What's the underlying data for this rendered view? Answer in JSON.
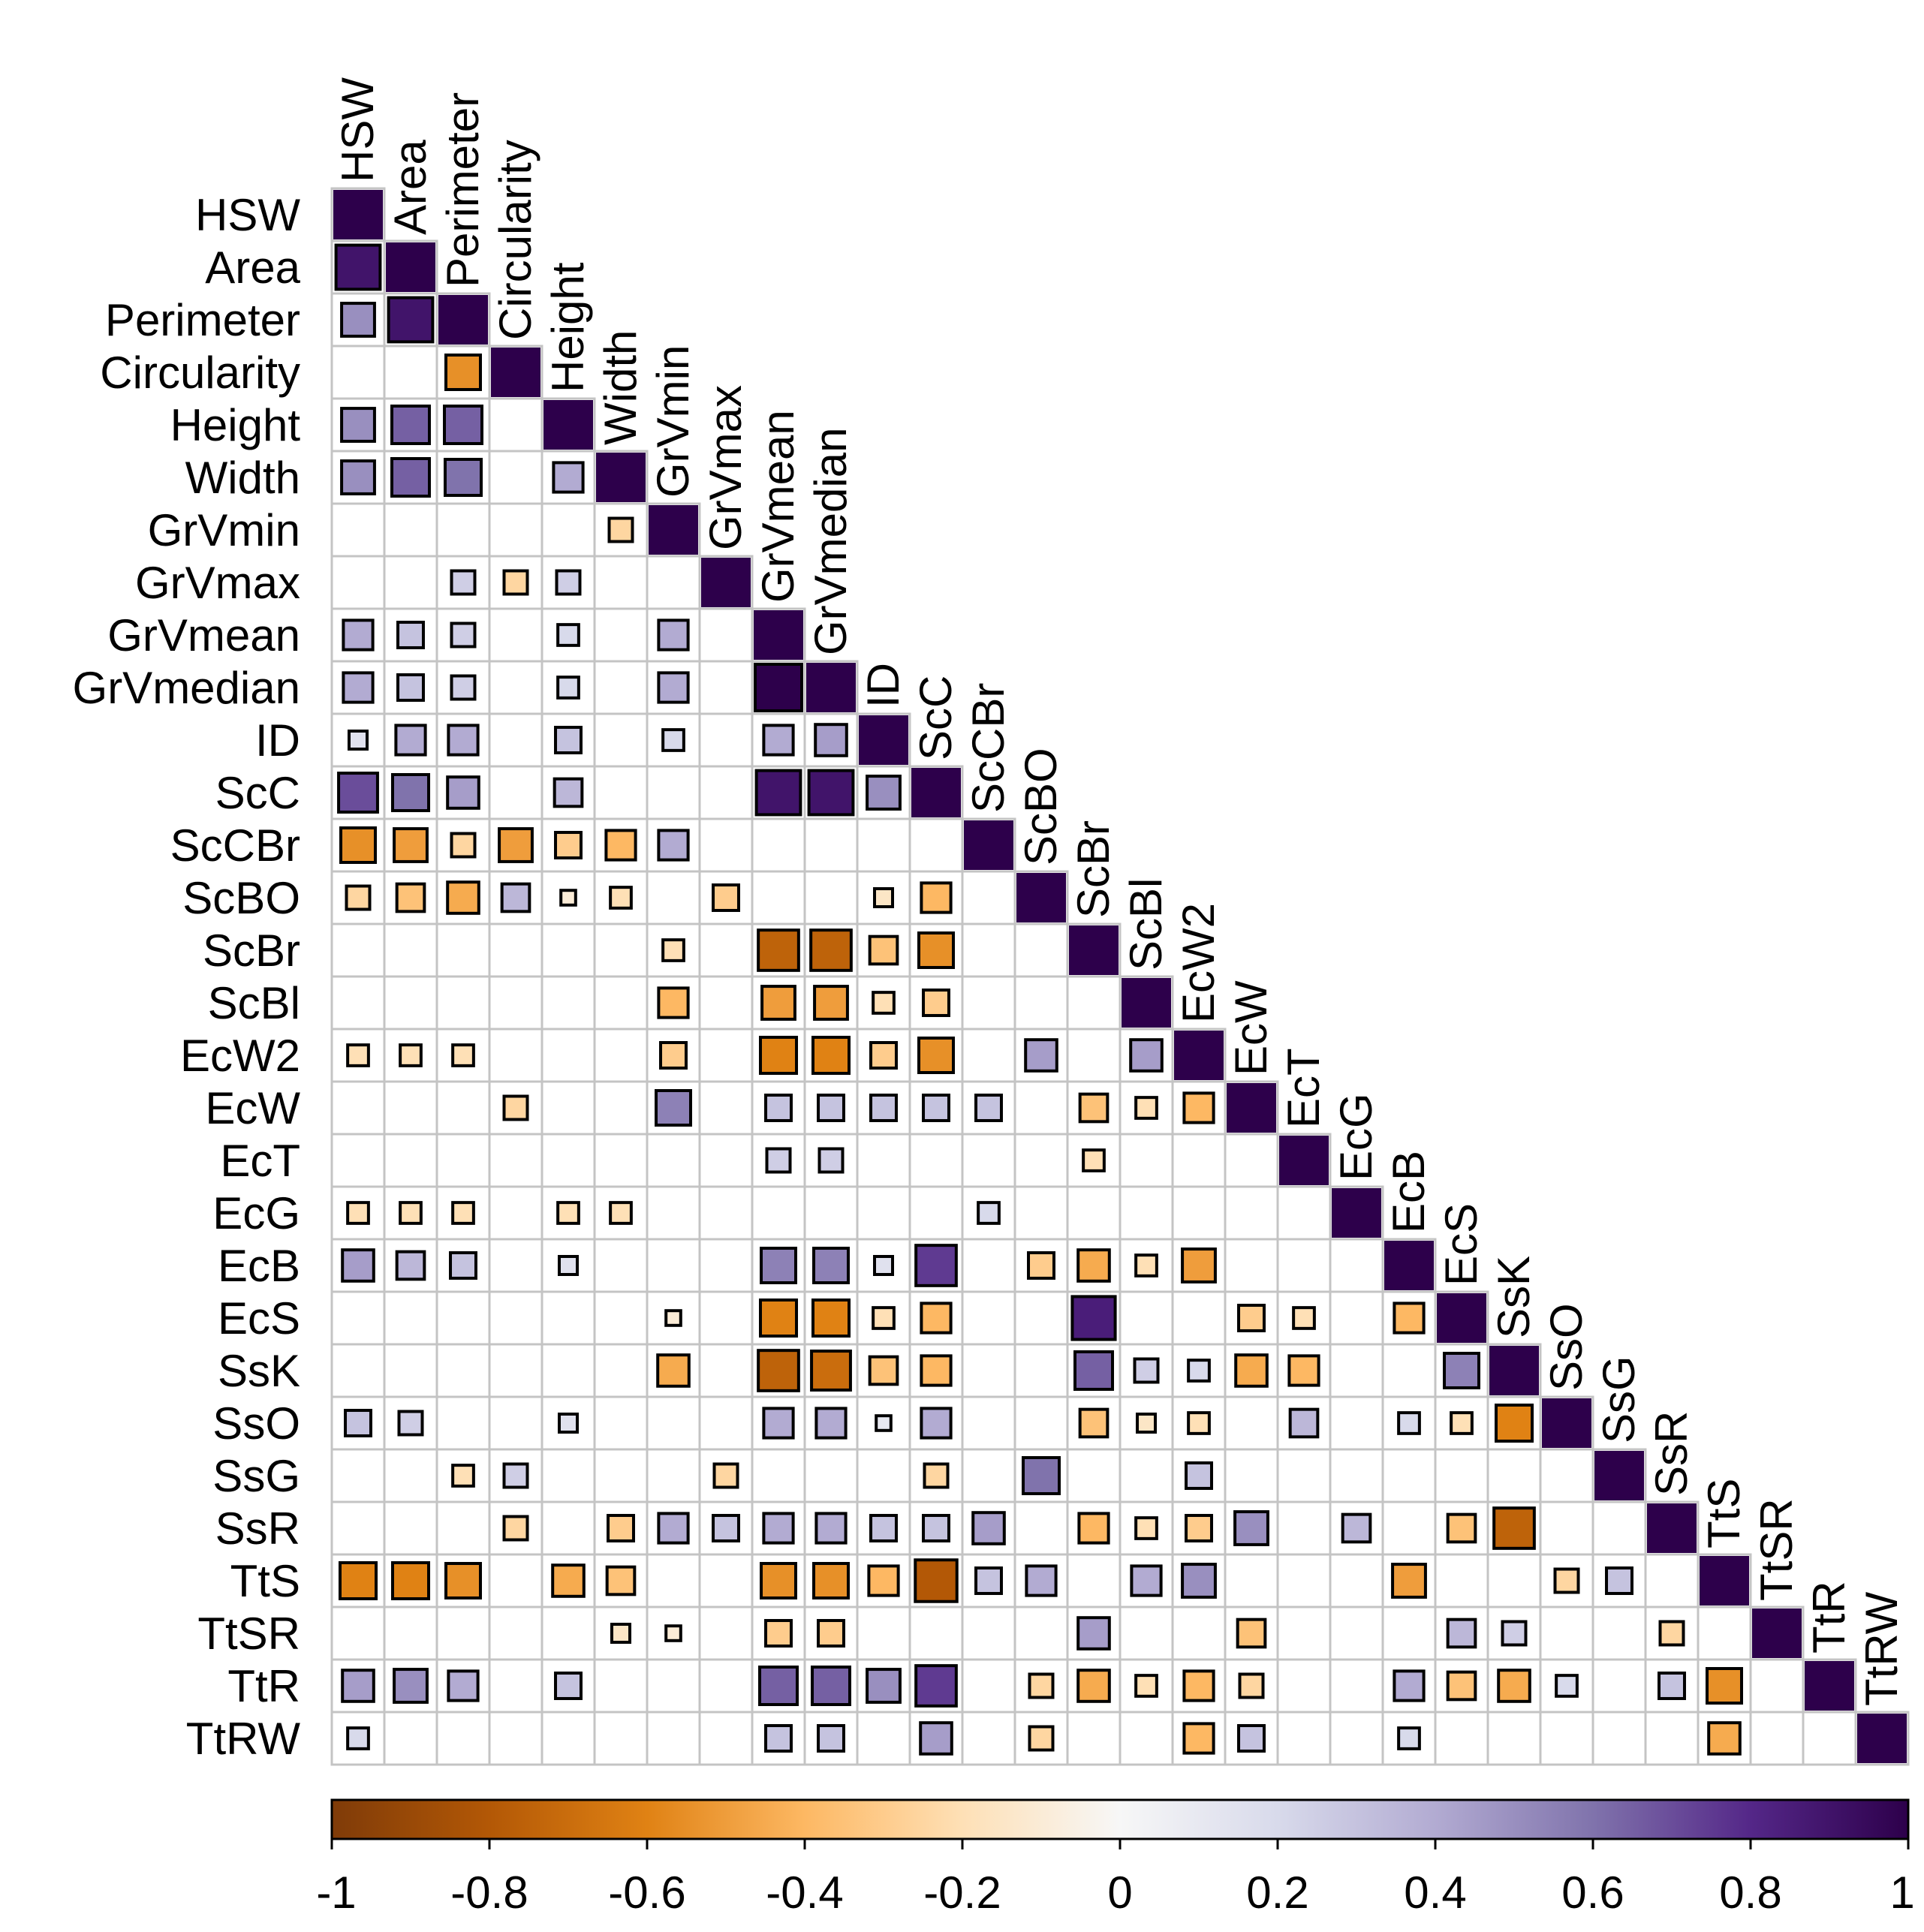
{
  "chart_data": {
    "type": "heatmap",
    "title": "",
    "xlabel": "",
    "ylabel": "",
    "variables": [
      "HSW",
      "Area",
      "Perimeter",
      "Circularity",
      "Height",
      "Width",
      "GrVmin",
      "GrVmax",
      "GrVmean",
      "GrVmedian",
      "ID",
      "ScC",
      "ScCBr",
      "ScBO",
      "ScBr",
      "ScBl",
      "EcW2",
      "EcW",
      "EcT",
      "EcG",
      "EcB",
      "EcS",
      "SsK",
      "SsO",
      "SsG",
      "SsR",
      "TtS",
      "TtSR",
      "TtR",
      "TtRW"
    ],
    "legend": {
      "placement": "bottom",
      "range": [
        -1,
        1
      ],
      "ticks": [
        "-1",
        "-0.8",
        "-0.6",
        "-0.4",
        "-0.2",
        "0",
        "0.2",
        "0.4",
        "0.6",
        "0.8",
        "1"
      ],
      "tick_values": [
        -1,
        -0.8,
        -0.6,
        -0.4,
        -0.2,
        0,
        0.2,
        0.4,
        0.6,
        0.8,
        1
      ],
      "colors": [
        "#7f3b08",
        "#b35806",
        "#e08214",
        "#fdb863",
        "#fee0b6",
        "#f7f7f7",
        "#d8daeb",
        "#b2abd2",
        "#8073ac",
        "#542788",
        "#2d004b"
      ]
    },
    "matrix_note": "lower triangle, row i lists correlations with columns 0..i; null = not shown",
    "values": [
      [
        1
      ],
      [
        0.9,
        1
      ],
      [
        0.5,
        0.9,
        1
      ],
      [
        null,
        null,
        -0.55,
        1
      ],
      [
        0.5,
        0.65,
        0.65,
        null,
        1
      ],
      [
        0.5,
        0.65,
        0.6,
        null,
        0.4,
        1
      ],
      [
        null,
        null,
        null,
        null,
        null,
        -0.25,
        1
      ],
      [
        null,
        null,
        0.25,
        -0.25,
        0.25,
        null,
        null,
        1
      ],
      [
        0.4,
        0.3,
        0.25,
        null,
        0.2,
        null,
        0.4,
        null,
        1
      ],
      [
        0.4,
        0.3,
        0.25,
        null,
        0.2,
        null,
        0.4,
        null,
        1,
        1
      ],
      [
        0.15,
        0.4,
        0.4,
        null,
        0.3,
        null,
        0.2,
        null,
        0.4,
        0.45,
        1
      ],
      [
        0.7,
        0.6,
        0.45,
        null,
        0.35,
        null,
        null,
        null,
        0.9,
        0.9,
        0.5,
        1
      ],
      [
        -0.55,
        -0.5,
        -0.25,
        -0.5,
        -0.3,
        -0.4,
        0.4,
        null,
        null,
        null,
        null,
        null,
        1
      ],
      [
        -0.25,
        -0.35,
        -0.45,
        0.35,
        -0.1,
        -0.2,
        null,
        -0.3,
        null,
        null,
        -0.15,
        -0.4,
        null,
        1
      ],
      [
        null,
        null,
        null,
        null,
        null,
        null,
        -0.2,
        null,
        -0.75,
        -0.75,
        -0.35,
        -0.55,
        null,
        null,
        1
      ],
      [
        null,
        null,
        null,
        null,
        null,
        null,
        -0.4,
        null,
        -0.5,
        -0.5,
        -0.2,
        -0.3,
        null,
        null,
        null,
        1
      ],
      [
        -0.2,
        -0.2,
        -0.2,
        null,
        null,
        null,
        -0.3,
        null,
        -0.6,
        -0.6,
        -0.3,
        -0.55,
        null,
        0.45,
        null,
        0.45,
        1
      ],
      [
        null,
        null,
        null,
        -0.25,
        null,
        null,
        0.55,
        null,
        0.3,
        0.3,
        0.3,
        0.3,
        0.3,
        null,
        -0.35,
        -0.2,
        -0.4,
        1
      ],
      [
        null,
        null,
        null,
        null,
        null,
        null,
        null,
        null,
        0.25,
        0.25,
        null,
        null,
        null,
        null,
        -0.2,
        null,
        null,
        null,
        1
      ],
      [
        -0.2,
        -0.2,
        -0.2,
        null,
        -0.2,
        -0.2,
        null,
        null,
        null,
        null,
        null,
        null,
        0.2,
        null,
        null,
        null,
        null,
        null,
        null,
        1
      ],
      [
        0.45,
        0.35,
        0.3,
        null,
        0.15,
        null,
        null,
        null,
        0.55,
        0.55,
        0.15,
        0.75,
        null,
        -0.3,
        -0.45,
        -0.2,
        -0.5,
        null,
        null,
        null,
        1
      ],
      [
        null,
        null,
        null,
        null,
        null,
        null,
        -0.1,
        null,
        -0.6,
        -0.6,
        -0.2,
        -0.4,
        null,
        null,
        0.85,
        null,
        null,
        -0.3,
        -0.2,
        null,
        -0.4,
        1
      ],
      [
        null,
        null,
        null,
        null,
        null,
        null,
        -0.45,
        null,
        -0.75,
        -0.7,
        -0.35,
        -0.4,
        null,
        null,
        0.65,
        0.25,
        0.2,
        -0.45,
        -0.4,
        null,
        null,
        0.55,
        1
      ],
      [
        0.3,
        0.25,
        null,
        null,
        0.15,
        null,
        null,
        null,
        0.4,
        0.4,
        0.1,
        0.4,
        null,
        null,
        -0.35,
        -0.15,
        -0.2,
        null,
        0.35,
        null,
        0.2,
        -0.2,
        -0.6,
        1
      ],
      [
        null,
        null,
        -0.2,
        0.25,
        null,
        null,
        null,
        -0.25,
        null,
        null,
        null,
        -0.25,
        null,
        0.6,
        null,
        null,
        0.3,
        null,
        null,
        null,
        null,
        null,
        null,
        null,
        1
      ],
      [
        null,
        null,
        null,
        -0.25,
        null,
        -0.3,
        0.4,
        0.3,
        0.4,
        0.4,
        0.3,
        0.3,
        0.45,
        null,
        -0.4,
        -0.2,
        -0.3,
        0.5,
        null,
        0.35,
        null,
        -0.35,
        -0.75,
        null,
        null,
        1
      ],
      [
        -0.6,
        -0.6,
        -0.55,
        null,
        -0.45,
        -0.35,
        null,
        null,
        -0.55,
        -0.55,
        -0.4,
        -0.8,
        0.3,
        0.4,
        null,
        0.4,
        0.5,
        null,
        null,
        null,
        -0.5,
        null,
        null,
        -0.25,
        0.3,
        null,
        1
      ],
      [
        null,
        null,
        null,
        null,
        null,
        -0.15,
        -0.1,
        null,
        -0.3,
        -0.3,
        null,
        null,
        null,
        null,
        0.45,
        null,
        null,
        -0.35,
        null,
        null,
        null,
        0.35,
        0.25,
        null,
        null,
        -0.25,
        null,
        1
      ],
      [
        0.45,
        0.5,
        0.4,
        null,
        0.3,
        null,
        null,
        null,
        0.65,
        0.65,
        0.5,
        0.75,
        null,
        -0.25,
        -0.45,
        -0.2,
        -0.4,
        -0.25,
        null,
        null,
        0.4,
        -0.35,
        -0.45,
        0.2,
        null,
        0.3,
        -0.55,
        null,
        1
      ],
      [
        0.2,
        null,
        null,
        null,
        null,
        null,
        null,
        null,
        0.3,
        0.3,
        null,
        0.45,
        null,
        -0.25,
        null,
        null,
        -0.4,
        0.3,
        null,
        null,
        0.2,
        null,
        null,
        null,
        null,
        null,
        -0.45,
        null,
        null,
        1
      ]
    ]
  }
}
